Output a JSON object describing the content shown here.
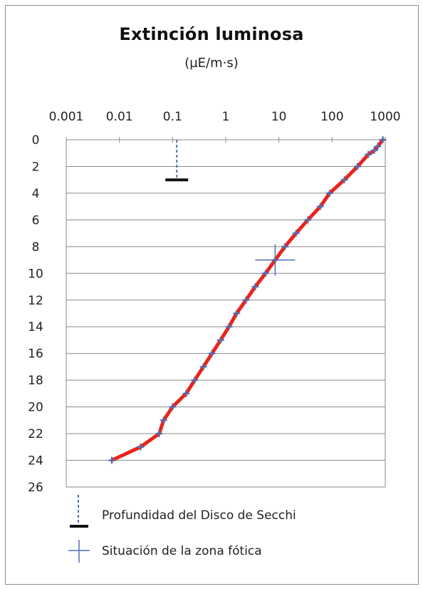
{
  "chart_data": {
    "type": "line",
    "title": "Extinción luminosa",
    "subtitle": "(µE/m·s)",
    "x_scale": "log",
    "x_axis_position": "top",
    "xlim": [
      0.001,
      1000
    ],
    "x_ticks": [
      "0.001",
      "0.01",
      "0.1",
      "1",
      "10",
      "100",
      "1000"
    ],
    "ylim": [
      0,
      26
    ],
    "y_inverted": true,
    "y_ticks": [
      "0",
      "2",
      "4",
      "6",
      "8",
      "10",
      "12",
      "14",
      "16",
      "18",
      "20",
      "22",
      "24",
      "26"
    ],
    "grid": "horizontal",
    "series": [
      {
        "color": "#e8241c",
        "marker_color": "#4f6fb5",
        "marker": "plus",
        "points": [
          {
            "x": 900,
            "y": 0
          },
          {
            "x": 720,
            "y": 0.5
          },
          {
            "x": 620,
            "y": 0.8
          },
          {
            "x": 480,
            "y": 1.1
          },
          {
            "x": 300,
            "y": 2
          },
          {
            "x": 170,
            "y": 3
          },
          {
            "x": 90,
            "y": 4
          },
          {
            "x": 60,
            "y": 5
          },
          {
            "x": 35,
            "y": 6
          },
          {
            "x": 21,
            "y": 7
          },
          {
            "x": 13,
            "y": 8
          },
          {
            "x": 8.5,
            "y": 9
          },
          {
            "x": 5.6,
            "y": 10
          },
          {
            "x": 3.6,
            "y": 11
          },
          {
            "x": 2.4,
            "y": 12
          },
          {
            "x": 1.6,
            "y": 13
          },
          {
            "x": 1.15,
            "y": 14
          },
          {
            "x": 0.8,
            "y": 15
          },
          {
            "x": 0.55,
            "y": 16
          },
          {
            "x": 0.38,
            "y": 17
          },
          {
            "x": 0.26,
            "y": 18
          },
          {
            "x": 0.18,
            "y": 19
          },
          {
            "x": 0.1,
            "y": 20
          },
          {
            "x": 0.068,
            "y": 21
          },
          {
            "x": 0.056,
            "y": 22
          },
          {
            "x": 0.025,
            "y": 23
          },
          {
            "x": 0.0072,
            "y": 24
          }
        ]
      },
      {
        "name": "Profundidad del Disco de Secchi",
        "type": "line",
        "style": "dashed",
        "color": "#4f6fb5",
        "cap_color": "#111111",
        "points": [
          {
            "x": 0.12,
            "y": 0
          },
          {
            "x": 0.12,
            "y": 3
          }
        ]
      },
      {
        "name": "Situación de la zona fótica",
        "type": "scatter",
        "marker": "large-plus",
        "color": "#4f6fb5",
        "points": [
          {
            "x": 8.5,
            "y": 9
          }
        ]
      }
    ],
    "legend": {
      "position": "bottom",
      "entries": [
        "Profundidad del Disco de Secchi",
        "Situación de la zona fótica"
      ]
    }
  }
}
